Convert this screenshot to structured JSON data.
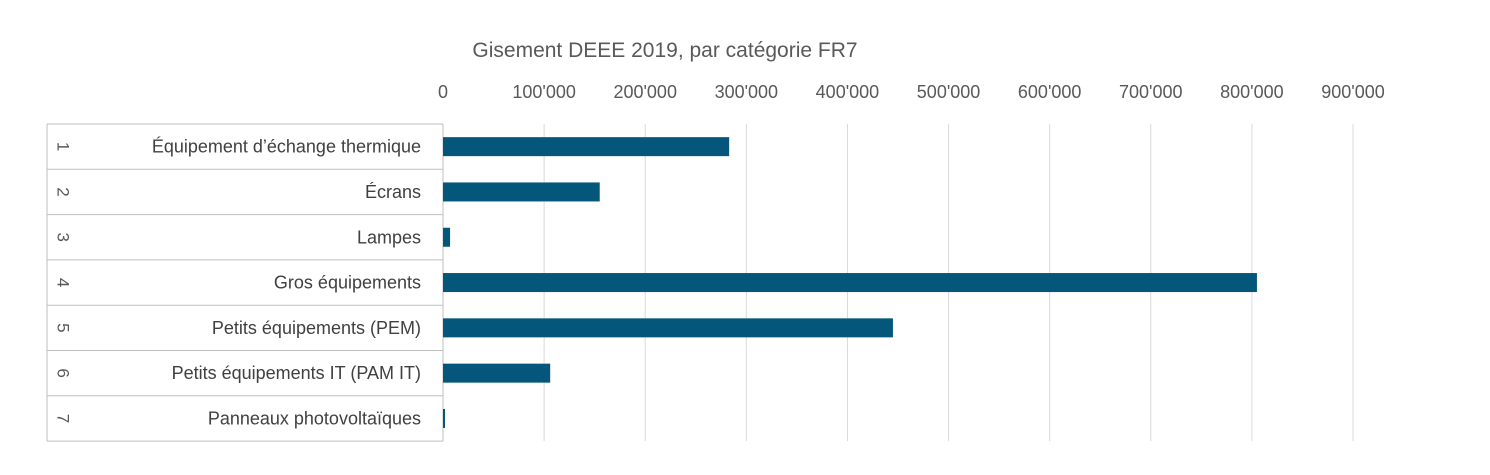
{
  "chart_data": {
    "type": "bar",
    "orientation": "horizontal",
    "title": "Gisement DEEE 2019, par catégorie FR7",
    "xlabel": "",
    "ylabel": "",
    "xlim": [
      0,
      900000
    ],
    "x_ticks": [
      0,
      100000,
      200000,
      300000,
      400000,
      500000,
      600000,
      700000,
      800000,
      900000
    ],
    "x_tick_labels": [
      "0",
      "100'000",
      "200'000",
      "300'000",
      "400'000",
      "500'000",
      "600'000",
      "700'000",
      "800'000",
      "900'000"
    ],
    "x_axis_position": "top",
    "grid": true,
    "legend": "none",
    "bar_color": "#04577A",
    "categories": [
      {
        "index": "1",
        "label": "Équipement d’échange thermique"
      },
      {
        "index": "2",
        "label": "Écrans"
      },
      {
        "index": "3",
        "label": "Lampes"
      },
      {
        "index": "4",
        "label": "Gros équipements"
      },
      {
        "index": "5",
        "label": "Petits équipements (PEM)"
      },
      {
        "index": "6",
        "label": "Petits équipements IT (PAM IT)"
      },
      {
        "index": "7",
        "label": "Panneaux photovoltaïques"
      }
    ],
    "values": [
      283000,
      155000,
      7000,
      805000,
      445000,
      106000,
      2000
    ]
  }
}
